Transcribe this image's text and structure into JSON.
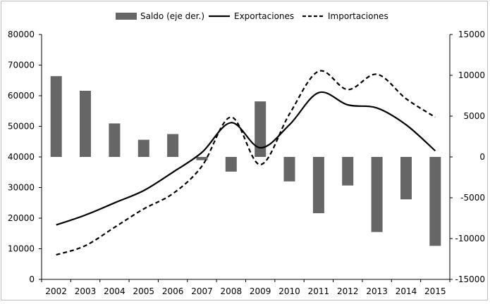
{
  "chart_data": {
    "type": "bar+line",
    "categories": [
      "2002",
      "2003",
      "2004",
      "2005",
      "2006",
      "2007",
      "2008",
      "2009",
      "2010",
      "2011",
      "2012",
      "2013",
      "2014",
      "2015"
    ],
    "series": [
      {
        "name": "Saldo (eje der.)",
        "kind": "bar",
        "axis": "right",
        "color": "#666666",
        "values": [
          9900,
          8100,
          4100,
          2100,
          2800,
          -400,
          -1800,
          6800,
          -3000,
          -6900,
          -3500,
          -9200,
          -5200,
          -10900
        ]
      },
      {
        "name": "Exportaciones",
        "kind": "line",
        "axis": "left",
        "color": "#000000",
        "dash": "solid",
        "values": [
          17800,
          21000,
          25000,
          29000,
          35000,
          41500,
          51200,
          43000,
          50500,
          61000,
          57000,
          56000,
          50500,
          42000
        ]
      },
      {
        "name": "Importaciones",
        "kind": "line",
        "axis": "left",
        "color": "#000000",
        "dash": "dashed",
        "values": [
          8000,
          11000,
          17000,
          23000,
          28000,
          37000,
          53000,
          37500,
          54000,
          68000,
          62000,
          67000,
          59000,
          53000
        ]
      }
    ],
    "y_left": {
      "min": 0,
      "max": 80000,
      "step": 10000,
      "ticks": [
        "0",
        "10000",
        "20000",
        "30000",
        "40000",
        "50000",
        "60000",
        "70000",
        "80000"
      ]
    },
    "y_right": {
      "min": -15000,
      "max": 15000,
      "step": 5000,
      "ticks": [
        "-15000",
        "-10000",
        "-5000",
        "0",
        "5000",
        "10000",
        "15000"
      ]
    },
    "grid": false,
    "legend_position": "top"
  }
}
